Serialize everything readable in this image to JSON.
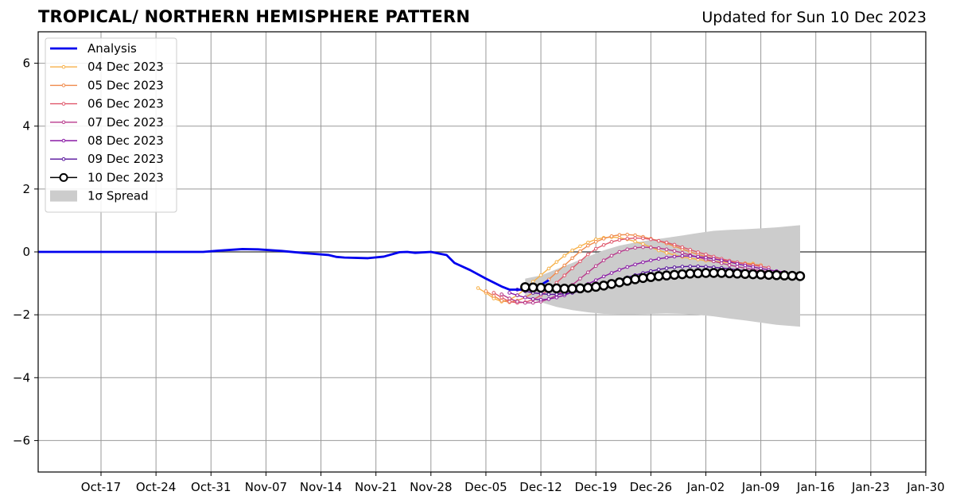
{
  "header": {
    "title": "TROPICAL/ NORTHERN HEMISPHERE PATTERN",
    "updated": "Updated for Sun 10 Dec 2023"
  },
  "colors": {
    "analysis": "#0000ee",
    "spread": "#cccccc",
    "grid": "#999999",
    "zero_line": "#555555"
  },
  "chart_data": {
    "type": "line",
    "title": "TROPICAL/ NORTHERN HEMISPHERE PATTERN",
    "xlabel": "",
    "ylabel": "",
    "x_range": [
      "2023-10-09",
      "2024-01-30"
    ],
    "ylim": [
      -7,
      7
    ],
    "grid": true,
    "legend_position": "upper-left",
    "x_ticks": [
      "Oct-17",
      "Oct-24",
      "Oct-31",
      "Nov-07",
      "Nov-14",
      "Nov-21",
      "Nov-28",
      "Dec-05",
      "Dec-12",
      "Dec-19",
      "Dec-26",
      "Jan-02",
      "Jan-09",
      "Jan-16",
      "Jan-23",
      "Jan-30"
    ],
    "y_ticks": [
      "6",
      "4",
      "2",
      "0",
      "−2",
      "−4",
      "−6"
    ],
    "y_tick_values": [
      6,
      4,
      2,
      0,
      -2,
      -4,
      -6
    ],
    "analysis": {
      "name": "Analysis",
      "color": "#0000ee",
      "points": [
        [
          "2023-10-09",
          0.0
        ],
        [
          "2023-10-20",
          0.0
        ],
        [
          "2023-10-30",
          0.0
        ],
        [
          "2023-11-01",
          0.04
        ],
        [
          "2023-11-04",
          0.09
        ],
        [
          "2023-11-06",
          0.08
        ],
        [
          "2023-11-09",
          0.03
        ],
        [
          "2023-11-12",
          -0.04
        ],
        [
          "2023-11-15",
          -0.1
        ],
        [
          "2023-11-16",
          -0.16
        ],
        [
          "2023-11-17",
          -0.18
        ],
        [
          "2023-11-20",
          -0.2
        ],
        [
          "2023-11-22",
          -0.15
        ],
        [
          "2023-11-24",
          -0.01
        ],
        [
          "2023-11-25",
          0.0
        ],
        [
          "2023-11-26",
          -0.03
        ],
        [
          "2023-11-28",
          0.0
        ],
        [
          "2023-11-30",
          -0.1
        ],
        [
          "2023-12-01",
          -0.35
        ],
        [
          "2023-12-03",
          -0.58
        ],
        [
          "2023-12-05",
          -0.85
        ],
        [
          "2023-12-07",
          -1.1
        ],
        [
          "2023-12-08",
          -1.2
        ],
        [
          "2023-12-10",
          -1.2
        ],
        [
          "2023-12-12",
          -1.05
        ],
        [
          "2023-12-13",
          -0.9
        ]
      ]
    },
    "series": [
      {
        "name": "04 Dec 2023",
        "color": "#f7b149",
        "x": [
          "2023-12-04",
          "2023-12-05",
          "2023-12-06",
          "2023-12-07",
          "2023-12-08",
          "2023-12-09",
          "2023-12-10",
          "2023-12-11",
          "2023-12-12",
          "2023-12-13",
          "2023-12-14",
          "2023-12-15",
          "2023-12-16",
          "2023-12-17",
          "2023-12-18",
          "2023-12-19",
          "2023-12-20",
          "2023-12-21",
          "2023-12-22",
          "2023-12-23",
          "2023-12-24",
          "2023-12-25",
          "2023-12-26",
          "2023-12-27",
          "2023-12-28",
          "2023-12-29",
          "2023-12-30",
          "2023-12-31",
          "2024-01-01",
          "2024-01-02",
          "2024-01-03",
          "2024-01-04",
          "2024-01-05",
          "2024-01-06",
          "2024-01-07",
          "2024-01-08"
        ],
        "values": [
          -1.15,
          -1.3,
          -1.48,
          -1.58,
          -1.52,
          -1.38,
          -1.18,
          -0.95,
          -0.74,
          -0.53,
          -0.32,
          -0.12,
          0.05,
          0.18,
          0.3,
          0.4,
          0.45,
          0.47,
          0.45,
          0.4,
          0.33,
          0.25,
          0.15,
          0.05,
          -0.03,
          -0.1,
          -0.16,
          -0.2,
          -0.24,
          -0.28,
          -0.3,
          -0.32,
          -0.34,
          -0.35,
          -0.36,
          -0.37
        ]
      },
      {
        "name": "05 Dec 2023",
        "color": "#f08a4b",
        "x": [
          "2023-12-05",
          "2023-12-06",
          "2023-12-07",
          "2023-12-08",
          "2023-12-09",
          "2023-12-10",
          "2023-12-11",
          "2023-12-12",
          "2023-12-13",
          "2023-12-14",
          "2023-12-15",
          "2023-12-16",
          "2023-12-17",
          "2023-12-18",
          "2023-12-19",
          "2023-12-20",
          "2023-12-21",
          "2023-12-22",
          "2023-12-23",
          "2023-12-24",
          "2023-12-25",
          "2023-12-26",
          "2023-12-27",
          "2023-12-28",
          "2023-12-29",
          "2023-12-30",
          "2023-12-31",
          "2024-01-01",
          "2024-01-02",
          "2024-01-03",
          "2024-01-04",
          "2024-01-05",
          "2024-01-06",
          "2024-01-07",
          "2024-01-08",
          "2024-01-09"
        ],
        "values": [
          -1.25,
          -1.4,
          -1.55,
          -1.6,
          -1.55,
          -1.45,
          -1.3,
          -1.1,
          -0.88,
          -0.65,
          -0.43,
          -0.2,
          0.02,
          0.2,
          0.32,
          0.42,
          0.5,
          0.54,
          0.55,
          0.53,
          0.48,
          0.42,
          0.35,
          0.27,
          0.18,
          0.09,
          0.0,
          -0.08,
          -0.15,
          -0.21,
          -0.26,
          -0.3,
          -0.34,
          -0.37,
          -0.4,
          -0.42
        ]
      },
      {
        "name": "06 Dec 2023",
        "color": "#e0576b",
        "x": [
          "2023-12-06",
          "2023-12-07",
          "2023-12-08",
          "2023-12-09",
          "2023-12-10",
          "2023-12-11",
          "2023-12-12",
          "2023-12-13",
          "2023-12-14",
          "2023-12-15",
          "2023-12-16",
          "2023-12-17",
          "2023-12-18",
          "2023-12-19",
          "2023-12-20",
          "2023-12-21",
          "2023-12-22",
          "2023-12-23",
          "2023-12-24",
          "2023-12-25",
          "2023-12-26",
          "2023-12-27",
          "2023-12-28",
          "2023-12-29",
          "2023-12-30",
          "2023-12-31",
          "2024-01-01",
          "2024-01-02",
          "2024-01-03",
          "2024-01-04",
          "2024-01-05",
          "2024-01-06",
          "2024-01-07",
          "2024-01-08",
          "2024-01-09",
          "2024-01-10"
        ],
        "values": [
          -1.3,
          -1.45,
          -1.58,
          -1.62,
          -1.6,
          -1.52,
          -1.38,
          -1.2,
          -0.98,
          -0.75,
          -0.52,
          -0.3,
          -0.08,
          0.1,
          0.22,
          0.32,
          0.38,
          0.42,
          0.44,
          0.43,
          0.4,
          0.35,
          0.3,
          0.23,
          0.15,
          0.07,
          -0.01,
          -0.08,
          -0.15,
          -0.22,
          -0.28,
          -0.33,
          -0.38,
          -0.42,
          -0.46,
          -0.5
        ]
      },
      {
        "name": "07 Dec 2023",
        "color": "#b83a8c",
        "x": [
          "2023-12-07",
          "2023-12-08",
          "2023-12-09",
          "2023-12-10",
          "2023-12-11",
          "2023-12-12",
          "2023-12-13",
          "2023-12-14",
          "2023-12-15",
          "2023-12-16",
          "2023-12-17",
          "2023-12-18",
          "2023-12-19",
          "2023-12-20",
          "2023-12-21",
          "2023-12-22",
          "2023-12-23",
          "2023-12-24",
          "2023-12-25",
          "2023-12-26",
          "2023-12-27",
          "2023-12-28",
          "2023-12-29",
          "2023-12-30",
          "2023-12-31",
          "2024-01-01",
          "2024-01-02",
          "2024-01-03",
          "2024-01-04",
          "2024-01-05",
          "2024-01-06",
          "2024-01-07",
          "2024-01-08",
          "2024-01-09",
          "2024-01-10",
          "2024-01-11"
        ],
        "values": [
          -1.35,
          -1.48,
          -1.58,
          -1.62,
          -1.62,
          -1.58,
          -1.5,
          -1.38,
          -1.22,
          -1.05,
          -0.85,
          -0.65,
          -0.45,
          -0.27,
          -0.12,
          0.0,
          0.08,
          0.13,
          0.15,
          0.14,
          0.12,
          0.08,
          0.03,
          -0.03,
          -0.1,
          -0.17,
          -0.24,
          -0.3,
          -0.36,
          -0.42,
          -0.47,
          -0.52,
          -0.56,
          -0.6,
          -0.63,
          -0.66
        ]
      },
      {
        "name": "08 Dec 2023",
        "color": "#8a1aa5",
        "x": [
          "2023-12-08",
          "2023-12-09",
          "2023-12-10",
          "2023-12-11",
          "2023-12-12",
          "2023-12-13",
          "2023-12-14",
          "2023-12-15",
          "2023-12-16",
          "2023-12-17",
          "2023-12-18",
          "2023-12-19",
          "2023-12-20",
          "2023-12-21",
          "2023-12-22",
          "2023-12-23",
          "2023-12-24",
          "2023-12-25",
          "2023-12-26",
          "2023-12-27",
          "2023-12-28",
          "2023-12-29",
          "2023-12-30",
          "2023-12-31",
          "2024-01-01",
          "2024-01-02",
          "2024-01-03",
          "2024-01-04",
          "2024-01-05",
          "2024-01-06",
          "2024-01-07",
          "2024-01-08",
          "2024-01-09",
          "2024-01-10",
          "2024-01-11",
          "2024-01-12"
        ],
        "values": [
          -1.3,
          -1.38,
          -1.45,
          -1.5,
          -1.52,
          -1.5,
          -1.45,
          -1.38,
          -1.28,
          -1.15,
          -1.02,
          -0.9,
          -0.78,
          -0.67,
          -0.57,
          -0.48,
          -0.4,
          -0.33,
          -0.27,
          -0.22,
          -0.18,
          -0.15,
          -0.13,
          -0.13,
          -0.15,
          -0.18,
          -0.22,
          -0.27,
          -0.32,
          -0.38,
          -0.43,
          -0.48,
          -0.53,
          -0.57,
          -0.61,
          -0.64
        ]
      },
      {
        "name": "09 Dec 2023",
        "color": "#55109b",
        "x": [
          "2023-12-09",
          "2023-12-10",
          "2023-12-11",
          "2023-12-12",
          "2023-12-13",
          "2023-12-14",
          "2023-12-15",
          "2023-12-16",
          "2023-12-17",
          "2023-12-18",
          "2023-12-19",
          "2023-12-20",
          "2023-12-21",
          "2023-12-22",
          "2023-12-23",
          "2023-12-24",
          "2023-12-25",
          "2023-12-26",
          "2023-12-27",
          "2023-12-28",
          "2023-12-29",
          "2023-12-30",
          "2023-12-31",
          "2024-01-01",
          "2024-01-02",
          "2024-01-03",
          "2024-01-04",
          "2024-01-05",
          "2024-01-06",
          "2024-01-07",
          "2024-01-08",
          "2024-01-09",
          "2024-01-10",
          "2024-01-11",
          "2024-01-12",
          "2024-01-13"
        ],
        "values": [
          -1.2,
          -1.25,
          -1.3,
          -1.33,
          -1.35,
          -1.35,
          -1.33,
          -1.3,
          -1.25,
          -1.2,
          -1.13,
          -1.05,
          -0.97,
          -0.89,
          -0.81,
          -0.74,
          -0.67,
          -0.61,
          -0.56,
          -0.52,
          -0.49,
          -0.47,
          -0.46,
          -0.46,
          -0.47,
          -0.49,
          -0.51,
          -0.54,
          -0.57,
          -0.6,
          -0.62,
          -0.65,
          -0.67,
          -0.69,
          -0.71,
          -0.72
        ]
      },
      {
        "name": "10 Dec 2023",
        "color": "#000000",
        "x": [
          "2023-12-10",
          "2023-12-11",
          "2023-12-12",
          "2023-12-13",
          "2023-12-14",
          "2023-12-15",
          "2023-12-16",
          "2023-12-17",
          "2023-12-18",
          "2023-12-19",
          "2023-12-20",
          "2023-12-21",
          "2023-12-22",
          "2023-12-23",
          "2023-12-24",
          "2023-12-25",
          "2023-12-26",
          "2023-12-27",
          "2023-12-28",
          "2023-12-29",
          "2023-12-30",
          "2023-12-31",
          "2024-01-01",
          "2024-01-02",
          "2024-01-03",
          "2024-01-04",
          "2024-01-05",
          "2024-01-06",
          "2024-01-07",
          "2024-01-08",
          "2024-01-09",
          "2024-01-10",
          "2024-01-11",
          "2024-01-12",
          "2024-01-13",
          "2024-01-14"
        ],
        "values": [
          -1.12,
          -1.13,
          -1.14,
          -1.15,
          -1.16,
          -1.17,
          -1.17,
          -1.16,
          -1.14,
          -1.11,
          -1.07,
          -1.02,
          -0.97,
          -0.92,
          -0.87,
          -0.83,
          -0.8,
          -0.77,
          -0.75,
          -0.73,
          -0.71,
          -0.69,
          -0.68,
          -0.67,
          -0.67,
          -0.67,
          -0.68,
          -0.69,
          -0.7,
          -0.71,
          -0.72,
          -0.73,
          -0.74,
          -0.75,
          -0.76,
          -0.77
        ]
      }
    ],
    "spread": {
      "name": "1σ Spread",
      "color": "#cccccc",
      "x": [
        "2023-12-10",
        "2023-12-12",
        "2023-12-14",
        "2023-12-16",
        "2023-12-18",
        "2023-12-20",
        "2023-12-22",
        "2023-12-24",
        "2023-12-26",
        "2023-12-28",
        "2023-12-30",
        "2024-01-01",
        "2024-01-03",
        "2024-01-05",
        "2024-01-07",
        "2024-01-09",
        "2024-01-11",
        "2024-01-14"
      ],
      "upper": [
        -0.85,
        -0.75,
        -0.55,
        -0.35,
        -0.15,
        0.05,
        0.2,
        0.3,
        0.38,
        0.45,
        0.52,
        0.6,
        0.67,
        0.7,
        0.72,
        0.75,
        0.78,
        0.85
      ],
      "lower": [
        -1.45,
        -1.6,
        -1.75,
        -1.85,
        -1.92,
        -1.97,
        -1.98,
        -1.98,
        -1.97,
        -1.96,
        -1.97,
        -2.0,
        -2.05,
        -2.12,
        -2.18,
        -2.25,
        -2.32,
        -2.38
      ]
    },
    "legend": [
      "Analysis",
      "04 Dec 2023",
      "05 Dec 2023",
      "06 Dec 2023",
      "07 Dec 2023",
      "08 Dec 2023",
      "09 Dec 2023",
      "10 Dec 2023",
      "1σ Spread"
    ]
  }
}
